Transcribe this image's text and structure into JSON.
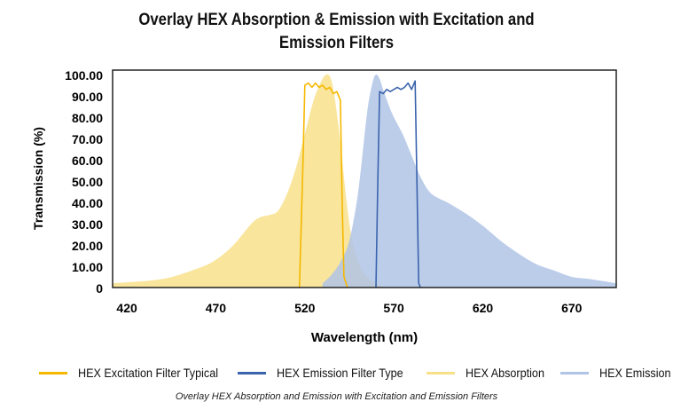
{
  "chart_data": {
    "type": "area",
    "title_line1": "Overlay HEX Absorption & Emission with Excitation and",
    "title_line2": "Emission Filters",
    "xlabel": "Wavelength (nm)",
    "ylabel": "Transmission (%)",
    "xlim": [
      412,
      695
    ],
    "ylim": [
      0,
      100
    ],
    "x_ticks": [
      420,
      470,
      520,
      570,
      620,
      670
    ],
    "y_ticks": [
      0,
      10,
      20,
      30,
      40,
      50,
      60,
      70,
      80,
      90,
      100
    ],
    "y_tick_labels": [
      "0",
      "10.00",
      "20.00",
      "30.00",
      "40.00",
      "50.00",
      "60.00",
      "70.00",
      "80.00",
      "90.00",
      "100.00"
    ],
    "grid": false,
    "legend_position": "bottom",
    "caption": "Overlay HEX Absorption and Emission with Excitation and Emission Filters",
    "series": [
      {
        "name": "HEX Excitation Filter Typical",
        "kind": "line",
        "color": "#f5b800",
        "x": [
          517,
          519,
          520,
          522,
          524,
          526,
          528,
          530,
          532,
          534,
          536,
          538,
          540,
          541,
          542,
          544
        ],
        "y": [
          0,
          60,
          95,
          96,
          94,
          96,
          94,
          95,
          93,
          94,
          91,
          92,
          88,
          40,
          5,
          0
        ]
      },
      {
        "name": "HEX Emission Filter Type",
        "kind": "line",
        "color": "#3b64ad",
        "x": [
          560,
          561,
          562,
          564,
          566,
          568,
          570,
          572,
          574,
          576,
          578,
          580,
          582,
          584,
          585
        ],
        "y": [
          0,
          50,
          92,
          91,
          93,
          92,
          93,
          94,
          93,
          94,
          96,
          93,
          97,
          2,
          0
        ]
      },
      {
        "name": "HEX Absorption",
        "kind": "area",
        "color": "#f8e08a",
        "x": [
          412,
          440,
          460,
          470,
          480,
          490,
          495,
          500,
          505,
          510,
          515,
          520,
          525,
          530,
          533,
          535,
          537,
          540,
          543,
          546,
          550,
          555,
          560,
          565
        ],
        "y": [
          2,
          4,
          9,
          13,
          20,
          30,
          33,
          34,
          36,
          44,
          56,
          72,
          88,
          98,
          100,
          97,
          88,
          68,
          44,
          25,
          12,
          5,
          2,
          0
        ]
      },
      {
        "name": "HEX Emission",
        "kind": "area",
        "color": "#b0c4e6",
        "x": [
          530,
          535,
          540,
          545,
          550,
          555,
          558,
          560,
          562,
          564,
          567,
          570,
          575,
          580,
          585,
          590,
          595,
          600,
          610,
          620,
          630,
          640,
          650,
          660,
          670,
          680,
          695
        ],
        "y": [
          2,
          6,
          12,
          22,
          45,
          82,
          96,
          100,
          98,
          93,
          86,
          80,
          72,
          62,
          52,
          45,
          42,
          40,
          35,
          29,
          22,
          16,
          11,
          8,
          5,
          4,
          2
        ]
      }
    ]
  }
}
